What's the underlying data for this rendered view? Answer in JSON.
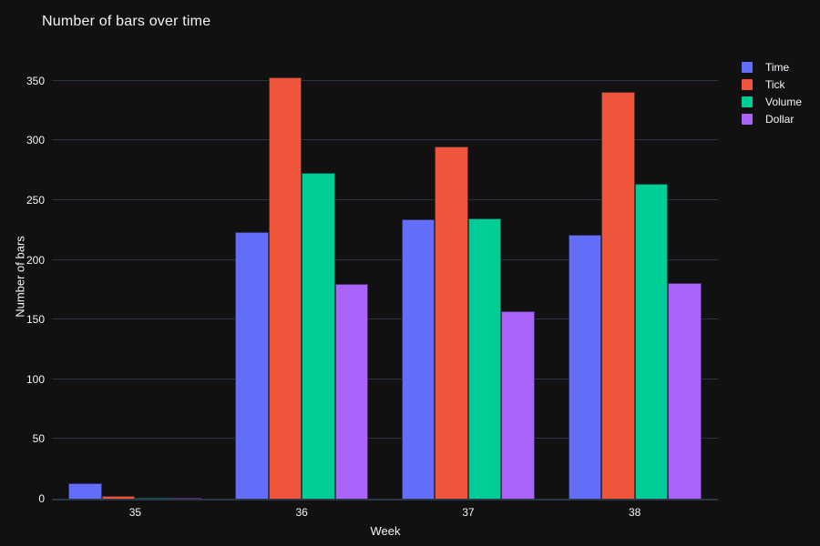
{
  "title": "Number of bars over time",
  "colors": {
    "background": "#111111",
    "gridline": "#283442",
    "axis_line": "#2b3648",
    "text": "#f2f5fa"
  },
  "chart_data": {
    "type": "bar",
    "title": "Number of bars over time",
    "xlabel": "Week",
    "ylabel": "Number of bars",
    "categories": [
      "35",
      "36",
      "37",
      "38"
    ],
    "series": [
      {
        "name": "Time",
        "color": "#636EFA",
        "values": [
          13,
          223,
          234,
          221
        ]
      },
      {
        "name": "Tick",
        "color": "#EF553B",
        "values": [
          2,
          353,
          295,
          341
        ]
      },
      {
        "name": "Volume",
        "color": "#00CC96",
        "values": [
          1,
          273,
          235,
          264
        ]
      },
      {
        "name": "Dollar",
        "color": "#AB63FA",
        "values": [
          1,
          180,
          157,
          181
        ]
      }
    ],
    "yticks": [
      0,
      50,
      100,
      150,
      200,
      250,
      300,
      350
    ],
    "ylim": [
      0,
      372
    ],
    "grid": true,
    "legend_position": "right"
  }
}
